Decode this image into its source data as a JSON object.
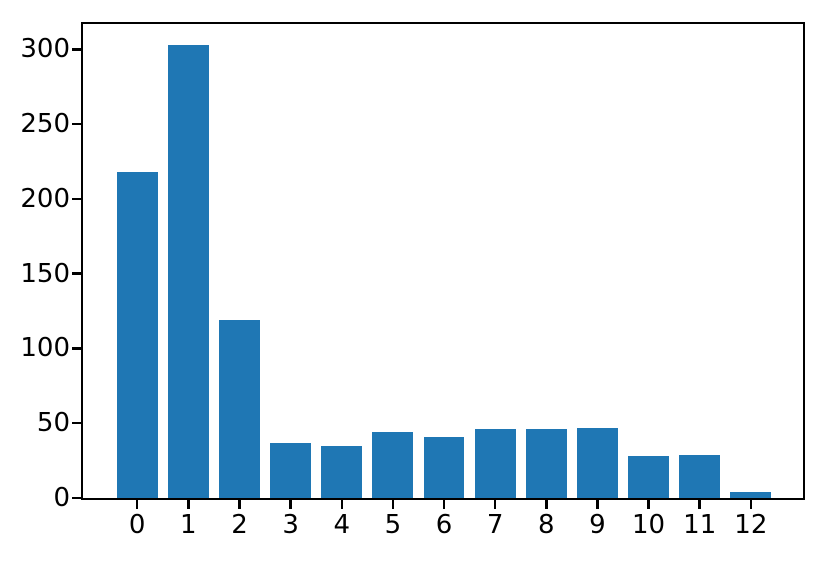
{
  "chart_data": {
    "type": "bar",
    "title": "",
    "xlabel": "",
    "ylabel": "",
    "categories": [
      "0",
      "1",
      "2",
      "3",
      "4",
      "5",
      "6",
      "7",
      "8",
      "9",
      "10",
      "11",
      "12"
    ],
    "values": [
      218,
      303,
      119,
      37,
      35,
      44,
      41,
      46,
      46,
      47,
      28,
      29,
      4
    ],
    "yticks": [
      0,
      50,
      100,
      150,
      200,
      250,
      300
    ],
    "ylim": [
      0,
      317
    ],
    "xlim": [
      -1.06,
      13.02
    ],
    "bar_width_units": 0.8,
    "grid": false,
    "legend": null,
    "colors": {
      "bar": "#1f77b4",
      "axis": "#000000",
      "background": "#ffffff",
      "text": "#000000"
    }
  }
}
